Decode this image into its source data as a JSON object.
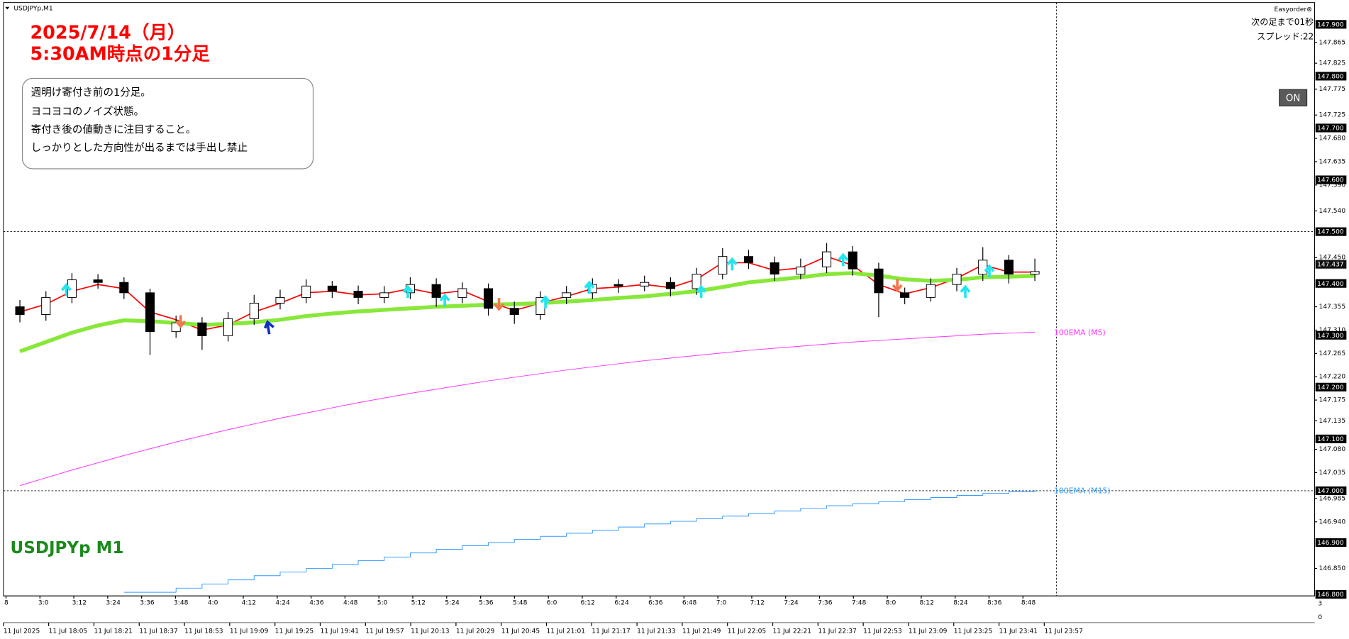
{
  "chart_data": {
    "type": "candlestick",
    "symbol_label": "USDJPYp,M1",
    "heading": [
      "2025/7/14（月）",
      "5:30AM時点の1分足"
    ],
    "note": [
      "週明け寄付き前の1分足。",
      "ヨコヨコのノイズ状態。",
      "寄付き後の値動きに注目すること。",
      "しっかりとした方向性が出るまでは手出し禁止"
    ],
    "watermark": "USDJPYp M1",
    "panel": {
      "title": "Easyorder⊗",
      "countdown": "次の足まで01秒",
      "spread": "スプレッド:22",
      "button": "ON"
    },
    "open": [
      147.355,
      147.34,
      147.373,
      147.407,
      147.402,
      147.382,
      147.307,
      147.324,
      147.299,
      147.332,
      147.362,
      147.373,
      147.395,
      147.385,
      147.373,
      147.382,
      147.398,
      147.373,
      147.39,
      147.352,
      147.34,
      147.373,
      147.382,
      147.398,
      147.395,
      147.402,
      147.39,
      147.418,
      147.452,
      147.44,
      147.418,
      147.432,
      147.461,
      147.428,
      147.382,
      147.373,
      147.398,
      147.418,
      147.445,
      147.418
    ],
    "high": [
      147.368,
      147.385,
      147.42,
      147.418,
      147.412,
      147.39,
      147.338,
      147.335,
      147.345,
      147.378,
      147.388,
      147.408,
      147.405,
      147.396,
      147.395,
      147.412,
      147.41,
      147.402,
      147.4,
      147.365,
      147.385,
      147.395,
      147.41,
      147.408,
      147.415,
      147.412,
      147.43,
      147.468,
      147.465,
      147.452,
      147.448,
      147.478,
      147.472,
      147.44,
      147.392,
      147.41,
      147.43,
      147.47,
      147.455,
      147.448
    ],
    "low": [
      147.325,
      147.328,
      147.362,
      147.39,
      147.37,
      147.262,
      147.295,
      147.272,
      147.288,
      147.32,
      147.35,
      147.362,
      147.372,
      147.36,
      147.362,
      147.37,
      147.355,
      147.362,
      147.338,
      147.322,
      147.33,
      147.36,
      147.37,
      147.382,
      147.385,
      147.375,
      147.378,
      147.408,
      147.428,
      147.405,
      147.408,
      147.42,
      147.415,
      147.335,
      147.36,
      147.365,
      147.385,
      147.405,
      147.4,
      147.405
    ],
    "close": [
      147.34,
      147.373,
      147.407,
      147.402,
      147.382,
      147.307,
      147.324,
      147.299,
      147.332,
      147.362,
      147.373,
      147.395,
      147.385,
      147.373,
      147.382,
      147.398,
      147.373,
      147.39,
      147.352,
      147.34,
      147.373,
      147.382,
      147.398,
      147.395,
      147.402,
      147.39,
      147.418,
      147.452,
      147.44,
      147.418,
      147.432,
      147.461,
      147.428,
      147.382,
      147.373,
      147.398,
      147.418,
      147.445,
      147.418,
      147.423
    ],
    "overlays": [
      {
        "color": "#ff0000",
        "values": [
          147.345,
          147.36,
          147.385,
          147.398,
          147.39,
          147.345,
          147.33,
          147.31,
          147.32,
          147.345,
          147.362,
          147.382,
          147.385,
          147.378,
          147.38,
          147.39,
          147.38,
          147.386,
          147.365,
          147.348,
          147.362,
          147.375,
          147.39,
          147.393,
          147.398,
          147.392,
          147.408,
          147.44,
          147.44,
          147.425,
          147.43,
          147.452,
          147.435,
          147.398,
          147.38,
          147.392,
          147.41,
          147.436,
          147.422,
          147.422
        ]
      },
      {
        "color": "#88e83a",
        "values": [
          147.269,
          147.287,
          147.305,
          147.319,
          147.329,
          147.327,
          147.324,
          147.32,
          147.322,
          147.325,
          147.33,
          147.337,
          147.342,
          147.346,
          147.349,
          147.352,
          147.355,
          147.357,
          147.359,
          147.36,
          147.362,
          147.365,
          147.368,
          147.372,
          147.375,
          147.38,
          147.385,
          147.393,
          147.402,
          147.407,
          147.412,
          147.418,
          147.42,
          147.415,
          147.408,
          147.405,
          147.407,
          147.412,
          147.413,
          147.415
        ]
      },
      {
        "name": "100EMA (M5)",
        "color": "#ff33ff",
        "values": [
          147.01,
          147.025,
          147.04,
          147.054,
          147.068,
          147.081,
          147.094,
          147.106,
          147.118,
          147.129,
          147.14,
          147.15,
          147.16,
          147.17,
          147.179,
          147.188,
          147.196,
          147.204,
          147.212,
          147.219,
          147.226,
          147.233,
          147.239,
          147.245,
          147.251,
          147.256,
          147.261,
          147.266,
          147.271,
          147.275,
          147.279,
          147.283,
          147.287,
          147.29,
          147.293,
          147.296,
          147.299,
          147.302,
          147.304,
          147.306
        ]
      },
      {
        "name": "100EMA (M15)",
        "color": "#3399ff",
        "step": true,
        "values": [
          null,
          null,
          null,
          null,
          146.804,
          146.804,
          146.812,
          146.82,
          146.828,
          146.836,
          146.843,
          146.85,
          146.858,
          146.865,
          146.872,
          146.88,
          146.887,
          146.894,
          146.9,
          146.906,
          146.912,
          146.918,
          146.924,
          146.93,
          146.936,
          146.941,
          146.946,
          146.951,
          146.956,
          146.961,
          146.966,
          146.971,
          146.975,
          146.979,
          146.983,
          146.987,
          146.991,
          146.995,
          146.998,
          147.001
        ]
      }
    ],
    "ylim": [
      146.797,
      147.942
    ],
    "yticks": [
      147.865,
      147.825,
      147.775,
      147.725,
      {
        "value": 147.68,
        "label": "147.680"
      },
      147.635,
      {
        "value": 147.59,
        "label": "147.590"
      },
      {
        "value": 147.54,
        "label": "147.540"
      },
      {
        "value": 147.45,
        "label": "147.450"
      },
      147.355,
      {
        "value": 147.31,
        "label": "147.310"
      },
      147.265,
      {
        "value": 147.22,
        "label": "147.220"
      },
      147.175,
      147.135,
      {
        "value": 147.08,
        "label": "147.080"
      },
      147.035,
      146.985,
      {
        "value": 146.94,
        "label": "146.940"
      },
      {
        "value": 146.85,
        "label": "146.850"
      }
    ],
    "price_levels": [
      {
        "value": 147.9,
        "label": "147.900"
      },
      {
        "value": 147.8,
        "label": "147.800"
      },
      {
        "value": 147.7,
        "label": "147.700"
      },
      {
        "value": 147.6,
        "label": "147.600"
      },
      {
        "value": 147.5,
        "label": "147.500"
      },
      {
        "value": 147.4,
        "label": "147.400"
      },
      {
        "value": 147.3,
        "label": "147.300"
      },
      {
        "value": 147.2,
        "label": "147.200"
      },
      {
        "value": 147.1,
        "label": "147.100"
      },
      {
        "value": 147.0,
        "label": "147.000"
      },
      {
        "value": 146.9,
        "label": "146.900"
      },
      {
        "value": 146.8,
        "label": "146.800"
      }
    ],
    "current_price": 147.437,
    "hlines": [
      147.5,
      147.0
    ],
    "time_labels": [
      "8",
      "3:0",
      "3:12",
      "3:24",
      "3:36",
      "3:48",
      "4:0",
      "4:12",
      "4:24",
      "4:36",
      "4:48",
      "5:0",
      "5:12",
      "5:24",
      "5:36",
      "5:48",
      "6:0",
      "6:12",
      "6:24",
      "6:36",
      "6:48",
      "7:0",
      "7:12",
      "7:24",
      "7:36",
      "7:48",
      "8:0",
      "8:12",
      "8:24",
      "8:36",
      "8:48"
    ],
    "date_labels": [
      "11 Jul 2025",
      "11 Jul 18:05",
      "11 Jul 18:21",
      "11 Jul 18:37",
      "11 Jul 18:53",
      "11 Jul 19:09",
      "11 Jul 19:25",
      "11 Jul 19:41",
      "11 Jul 19:57",
      "11 Jul 20:13",
      "11 Jul 20:29",
      "11 Jul 20:45",
      "11 Jul 21:01",
      "11 Jul 21:17",
      "11 Jul 21:33",
      "11 Jul 21:49",
      "11 Jul 22:05",
      "11 Jul 22:21",
      "11 Jul 22:37",
      "11 Jul 22:53",
      "11 Jul 23:09",
      "11 Jul 23:25",
      "11 Jul 23:41",
      "11 Jul 23:57"
    ],
    "indicator_yticks": [
      3,
      0
    ]
  }
}
